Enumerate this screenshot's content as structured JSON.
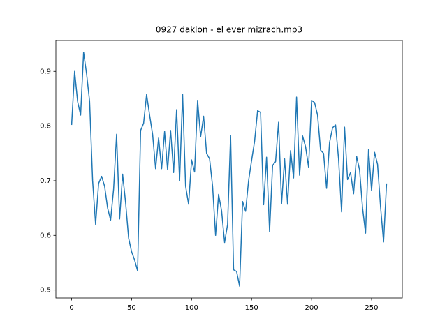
{
  "chart_data": {
    "type": "line",
    "title": "0927 daklon - el ever mizrach.mp3",
    "x": [
      0,
      2.5,
      5,
      7.5,
      10,
      12.5,
      15,
      17.5,
      20,
      22.5,
      25,
      27.5,
      30,
      32.5,
      35,
      37.5,
      40,
      42.5,
      45,
      47.5,
      50,
      52.5,
      55,
      57.5,
      60,
      62.5,
      65,
      67.5,
      70,
      72.5,
      75,
      77.5,
      80,
      82.5,
      85,
      87.5,
      90,
      92.5,
      95,
      97.5,
      100,
      102.5,
      105,
      107.5,
      110,
      112.5,
      115,
      117.5,
      120,
      122.5,
      125,
      127.5,
      130,
      132.5,
      135,
      137.5,
      140,
      142.5,
      145,
      147.5,
      150,
      152.5,
      155,
      157.5,
      160,
      162.5,
      165,
      167.5,
      170,
      172.5,
      175,
      177.5,
      180,
      182.5,
      185,
      187.5,
      190,
      192.5,
      195,
      197.5,
      200,
      202.5,
      205,
      207.5,
      210,
      212.5,
      215,
      217.5,
      220,
      222.5,
      225,
      227.5,
      230,
      232.5,
      235,
      237.5,
      240,
      242.5,
      245,
      247.5,
      250,
      252.5,
      255,
      257.5,
      260,
      262.5
    ],
    "series": [
      {
        "color": "#1f77b4",
        "values": [
          0.802,
          0.9,
          0.845,
          0.82,
          0.935,
          0.895,
          0.845,
          0.7,
          0.62,
          0.695,
          0.708,
          0.69,
          0.65,
          0.628,
          0.685,
          0.785,
          0.63,
          0.712,
          0.66,
          0.595,
          0.57,
          0.555,
          0.535,
          0.792,
          0.805,
          0.858,
          0.82,
          0.785,
          0.722,
          0.778,
          0.722,
          0.79,
          0.72,
          0.792,
          0.715,
          0.83,
          0.7,
          0.858,
          0.69,
          0.657,
          0.738,
          0.716,
          0.847,
          0.78,
          0.818,
          0.75,
          0.74,
          0.69,
          0.6,
          0.675,
          0.645,
          0.587,
          0.62,
          0.783,
          0.537,
          0.534,
          0.507,
          0.662,
          0.644,
          0.7,
          0.737,
          0.772,
          0.828,
          0.825,
          0.656,
          0.743,
          0.607,
          0.728,
          0.735,
          0.807,
          0.658,
          0.74,
          0.657,
          0.755,
          0.705,
          0.853,
          0.71,
          0.782,
          0.762,
          0.725,
          0.847,
          0.843,
          0.82,
          0.756,
          0.75,
          0.686,
          0.77,
          0.797,
          0.802,
          0.74,
          0.643,
          0.798,
          0.702,
          0.715,
          0.676,
          0.745,
          0.72,
          0.65,
          0.604,
          0.757,
          0.682,
          0.752,
          0.73,
          0.652,
          0.588,
          0.695
        ]
      }
    ],
    "xlim": [
      -13.125,
      275.625
    ],
    "xticks": [
      0,
      50,
      100,
      150,
      200,
      250
    ],
    "ylim": [
      0.4855,
      0.9565
    ],
    "yticks": [
      0.5,
      0.6,
      0.7,
      0.8,
      0.9
    ]
  }
}
